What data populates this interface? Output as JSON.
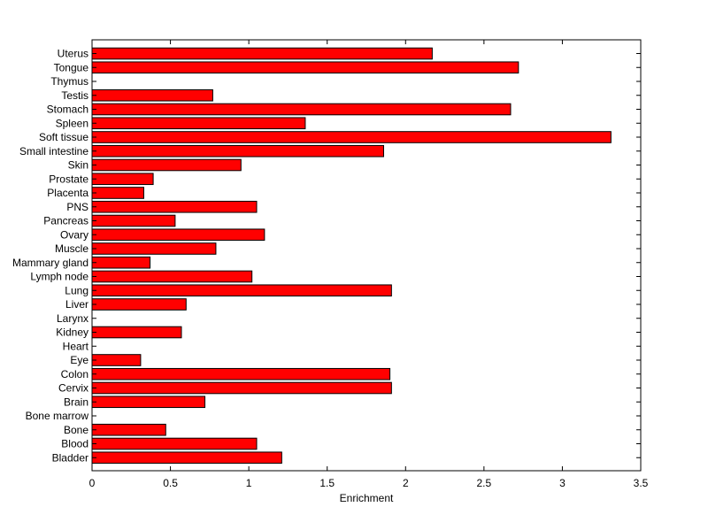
{
  "chart_data": {
    "type": "bar",
    "orientation": "horizontal",
    "title": "",
    "xlabel": "Enrichment",
    "ylabel": "",
    "xlim": [
      0,
      3.5
    ],
    "xticks": [
      0,
      0.5,
      1,
      1.5,
      2,
      2.5,
      3,
      3.5
    ],
    "xtick_labels": [
      "0",
      "0.5",
      "1",
      "1.5",
      "2",
      "2.5",
      "3",
      "3.5"
    ],
    "grid": false,
    "bar_color": "#ff0000",
    "bar_edge_color": "#000000",
    "categories": [
      "Uterus",
      "Tongue",
      "Thymus",
      "Testis",
      "Stomach",
      "Spleen",
      "Soft tissue",
      "Small intestine",
      "Skin",
      "Prostate",
      "Placenta",
      "PNS",
      "Pancreas",
      "Ovary",
      "Muscle",
      "Mammary gland",
      "Lymph node",
      "Lung",
      "Liver",
      "Larynx",
      "Kidney",
      "Heart",
      "Eye",
      "Colon",
      "Cervix",
      "Brain",
      "Bone marrow",
      "Bone",
      "Blood",
      "Bladder"
    ],
    "values": [
      2.17,
      2.72,
      0,
      0.77,
      2.67,
      1.36,
      3.31,
      1.86,
      0.95,
      0.39,
      0.33,
      1.05,
      0.53,
      1.1,
      0.79,
      0.37,
      1.02,
      1.91,
      0.6,
      0,
      0.57,
      0,
      0.31,
      1.9,
      1.91,
      0.72,
      0,
      0.47,
      1.05,
      1.21
    ]
  }
}
